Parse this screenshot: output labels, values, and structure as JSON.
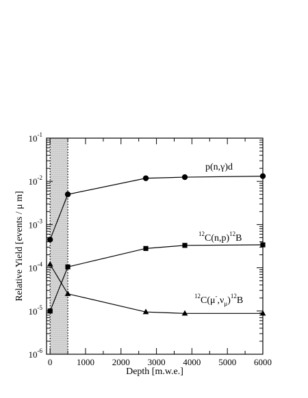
{
  "chart_data": {
    "type": "line",
    "xlabel": "Depth [m.w.e.]",
    "ylabel": "Relative Yield [events / μ m]",
    "xlim": [
      -100,
      6000
    ],
    "ylim": [
      1e-06,
      0.1
    ],
    "y_scale": "log",
    "x_ticks": [
      0,
      1000,
      2000,
      3000,
      4000,
      5000,
      6000
    ],
    "x_tick_labels": [
      "0",
      "1000",
      "2000",
      "3000",
      "4000",
      "5000",
      "6000"
    ],
    "y_ticks": [
      {
        "value": 1e-06,
        "base": "10",
        "exp": "-6"
      },
      {
        "value": 1e-05,
        "base": "10",
        "exp": "-5"
      },
      {
        "value": 0.0001,
        "base": "10",
        "exp": "-4"
      },
      {
        "value": 0.001,
        "base": "10",
        "exp": "-3"
      },
      {
        "value": 0.01,
        "base": "10",
        "exp": "-2"
      },
      {
        "value": 0.1,
        "base": "10",
        "exp": "-1"
      }
    ],
    "shaded_region": [
      0,
      500
    ],
    "grid": false,
    "series": [
      {
        "marker": "circle",
        "x": [
          0,
          500,
          2700,
          3800,
          6000
        ],
        "y": [
          0.00045,
          0.005,
          0.0118,
          0.0125,
          0.0132
        ]
      },
      {
        "marker": "square",
        "x": [
          0,
          500,
          2700,
          3800,
          6000
        ],
        "y": [
          1e-05,
          0.000105,
          0.00028,
          0.00033,
          0.00034
        ]
      },
      {
        "marker": "triangle",
        "x": [
          0,
          500,
          2700,
          3800,
          6000
        ],
        "y": [
          0.00012,
          2.5e-05,
          9.5e-06,
          8.8e-06,
          8.8e-06
        ]
      }
    ],
    "annotations": {
      "png": {
        "main": "p(n,γ)d"
      },
      "cnp": {
        "pre_sup": "12",
        "main": "C(n,p)",
        "post_sup": "12",
        "tail": "B"
      },
      "cmu": {
        "pre_sup": "12",
        "c": "C(μ",
        "mu_sup": "-",
        "mid": ",ν",
        "nu_sub": "μ",
        "close": ")",
        "post_sup": "12",
        "tail": "B"
      }
    }
  }
}
